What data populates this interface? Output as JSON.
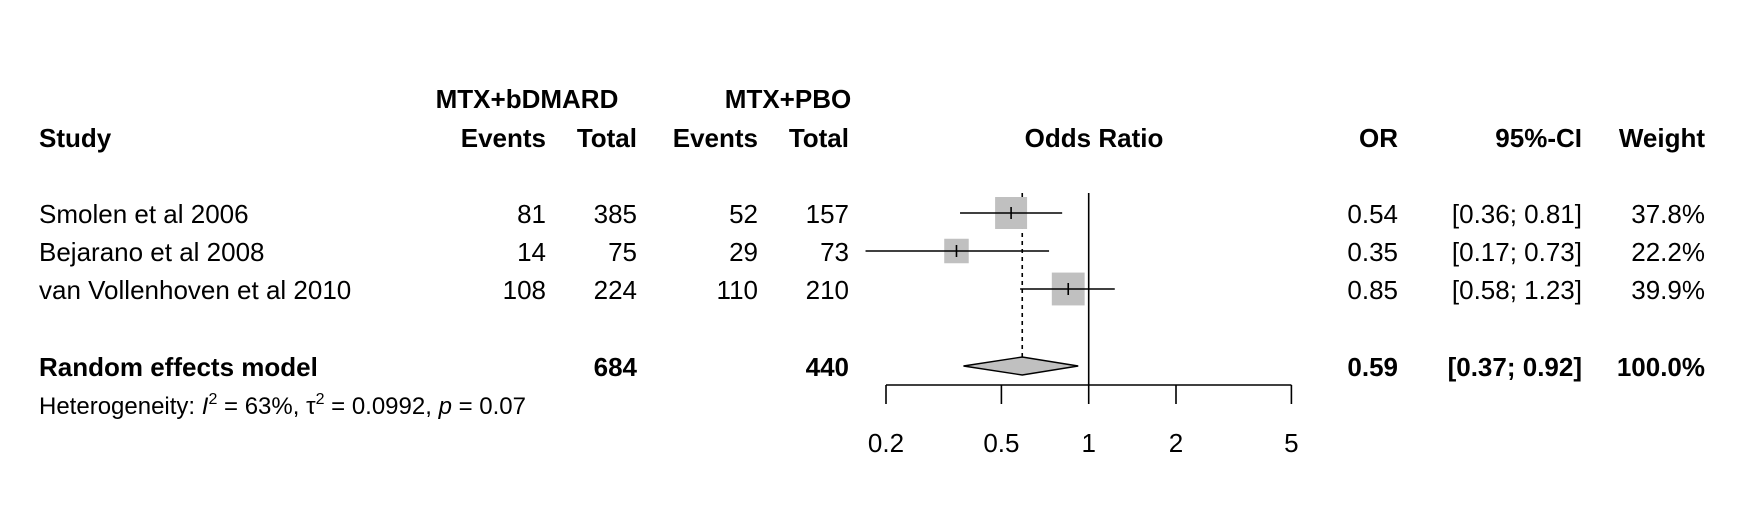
{
  "chart_data": {
    "type": "forest",
    "headers": {
      "group1": "MTX+bDMARD",
      "group2": "MTX+PBO",
      "study": "Study",
      "events1": "Events",
      "total1": "Total",
      "events2": "Events",
      "total2": "Total",
      "plot": "Odds Ratio",
      "or": "OR",
      "ci": "95%-CI",
      "weight": "Weight"
    },
    "studies": [
      {
        "name": "Smolen et al 2006",
        "events1": "81",
        "total1": "385",
        "events2": "52",
        "total2": "157",
        "or": 0.54,
        "lower": 0.36,
        "upper": 0.81,
        "weight": 37.8,
        "or_text": "0.54",
        "ci_text": "[0.36; 0.81]",
        "weight_text": "37.8%"
      },
      {
        "name": "Bejarano et al 2008",
        "events1": "14",
        "total1": "75",
        "events2": "29",
        "total2": "73",
        "or": 0.35,
        "lower": 0.17,
        "upper": 0.73,
        "weight": 22.2,
        "or_text": "0.35",
        "ci_text": "[0.17; 0.73]",
        "weight_text": "22.2%"
      },
      {
        "name": "van Vollenhoven et al 2010",
        "events1": "108",
        "total1": "224",
        "events2": "110",
        "total2": "210",
        "or": 0.85,
        "lower": 0.58,
        "upper": 1.23,
        "weight": 39.9,
        "or_text": "0.85",
        "ci_text": "[0.58; 1.23]",
        "weight_text": "39.9%"
      }
    ],
    "pooled": {
      "name": "Random effects model",
      "total1": "684",
      "total2": "440",
      "or": 0.59,
      "lower": 0.37,
      "upper": 0.92,
      "or_text": "0.59",
      "ci_text": "[0.37; 0.92]",
      "weight_text": "100.0%"
    },
    "heterogeneity": {
      "prefix": "Heterogeneity: ",
      "i2_sym": "I",
      "i2": " = 63%, ",
      "tau_sym": "τ",
      "tau2": " = 0.0992, ",
      "p_sym": "p",
      "p": " = 0.07"
    },
    "x_axis": {
      "scale": "log",
      "ticks": [
        0.2,
        0.5,
        1,
        2,
        5
      ],
      "tick_labels": [
        "0.2",
        "0.5",
        "1",
        "2",
        "5"
      ],
      "range": [
        0.2,
        5
      ]
    },
    "reference_line": 1,
    "colors": {
      "square": "#c0c0c0",
      "diamond": "#c0c0c0",
      "line": "#000000"
    }
  }
}
